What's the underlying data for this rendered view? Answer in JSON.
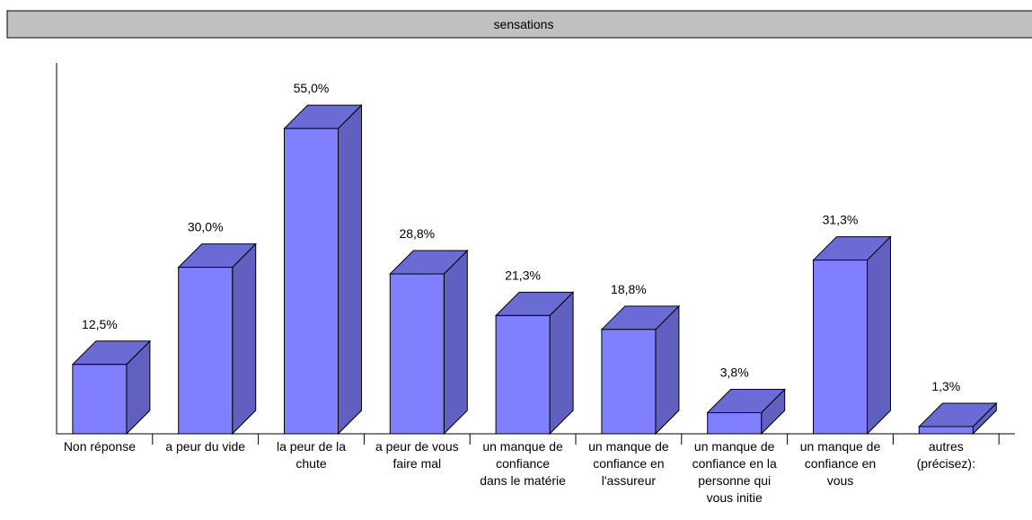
{
  "chart_data": {
    "type": "bar3d",
    "title": "sensations",
    "categories": [
      "Non réponse",
      "a peur du vide",
      "la peur de la\nchute",
      "a peur de vous\nfaire mal",
      "un manque de\nconfiance\ndans le matérie",
      "un manque de\nconfiance en\nl'assureur",
      "un manque de\nconfiance en la\npersonne qui\nvous initie",
      "un manque de\nconfiance en\nvous",
      "autres\n(précisez):"
    ],
    "values": [
      12.5,
      30.0,
      55.0,
      28.8,
      21.3,
      18.8,
      3.8,
      31.3,
      1.3
    ],
    "value_labels": [
      "12,5%",
      "30,0%",
      "55,0%",
      "28,8%",
      "21,3%",
      "18,8%",
      "3,8%",
      "31,3%",
      "1,3%"
    ],
    "color": "#8080ff"
  }
}
